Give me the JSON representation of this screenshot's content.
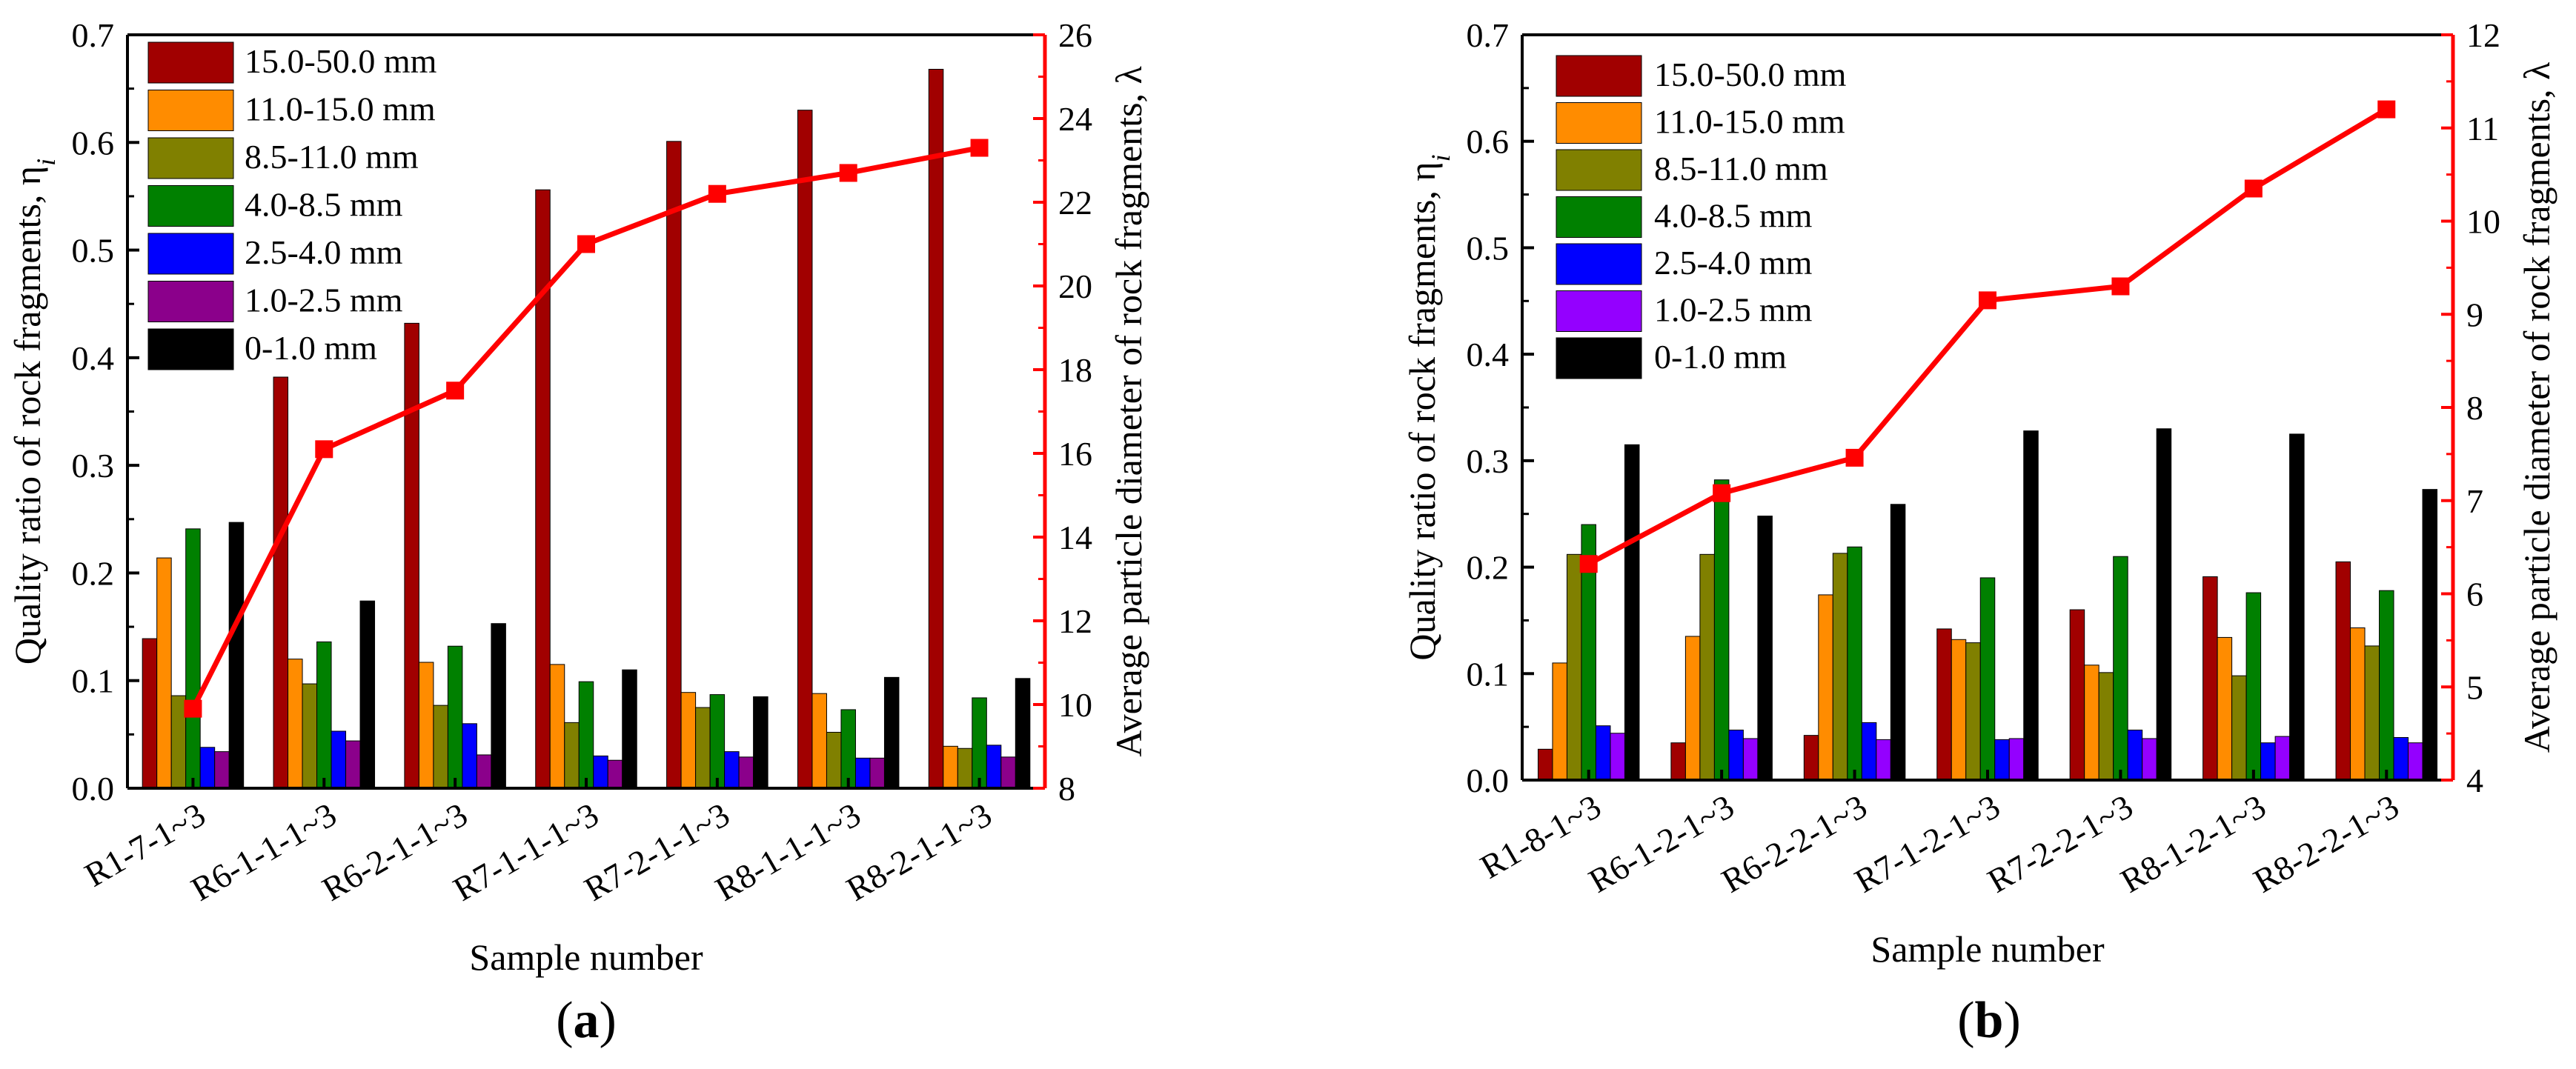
{
  "figure": {
    "panel_labels": [
      "(a)",
      "(b)"
    ]
  },
  "chart_data": [
    {
      "type": "bar",
      "panel": "(a)",
      "xlabel": "Sample number",
      "ylabel": "Quality ratio of rock fragments, η",
      "ylabel_subscript": "i",
      "y2label": "Average particle diameter of rock fragments, λ",
      "ylim": [
        0,
        0.7
      ],
      "yticks": [
        "0.0",
        "0.1",
        "0.2",
        "0.3",
        "0.4",
        "0.5",
        "0.6",
        "0.7"
      ],
      "y2lim": [
        8,
        26
      ],
      "y2ticks": [
        "8",
        "10",
        "12",
        "14",
        "16",
        "18",
        "20",
        "22",
        "24",
        "26"
      ],
      "legend_position": "top-left",
      "grid": false,
      "categories": [
        "R1-7-1~3",
        "R6-1-1-1~3",
        "R6-2-1-1~3",
        "R7-1-1-1~3",
        "R7-2-1-1~3",
        "R8-1-1-1~3",
        "R8-2-1-1~3"
      ],
      "series": [
        {
          "name": "15.0-50.0 mm",
          "color": "#a10000",
          "values": [
            0.139,
            0.382,
            0.432,
            0.556,
            0.601,
            0.63,
            0.668
          ]
        },
        {
          "name": "11.0-15.0 mm",
          "color": "#ff8c00",
          "values": [
            0.214,
            0.12,
            0.117,
            0.115,
            0.089,
            0.088,
            0.039
          ]
        },
        {
          "name": "8.5-11.0 mm",
          "color": "#808000",
          "values": [
            0.086,
            0.097,
            0.077,
            0.061,
            0.075,
            0.052,
            0.037
          ]
        },
        {
          "name": "4.0-8.5 mm",
          "color": "#008000",
          "values": [
            0.241,
            0.136,
            0.132,
            0.099,
            0.087,
            0.073,
            0.084
          ]
        },
        {
          "name": "2.5-4.0 mm",
          "color": "#0000ff",
          "values": [
            0.038,
            0.053,
            0.06,
            0.03,
            0.034,
            0.028,
            0.04
          ]
        },
        {
          "name": "1.0-2.5 mm",
          "color": "#8b008b",
          "values": [
            0.034,
            0.044,
            0.031,
            0.026,
            0.029,
            0.028,
            0.029
          ]
        },
        {
          "name": "0-1.0 mm",
          "color": "#000000",
          "values": [
            0.247,
            0.174,
            0.153,
            0.11,
            0.085,
            0.103,
            0.102
          ]
        }
      ],
      "line_series": {
        "axis": "right",
        "color": "#ff0000",
        "values": [
          9.9,
          16.1,
          17.5,
          21.0,
          22.2,
          22.7,
          23.3
        ]
      }
    },
    {
      "type": "bar",
      "panel": "(b)",
      "xlabel": "Sample number",
      "ylabel": "Quality ratio of rock fragments, η",
      "ylabel_subscript": "i",
      "y2label": "Average particle diameter of rock fragments, λ",
      "ylim": [
        0,
        0.7
      ],
      "yticks": [
        "0.0",
        "0.1",
        "0.2",
        "0.3",
        "0.4",
        "0.5",
        "0.6",
        "0.7"
      ],
      "y2lim": [
        4,
        12
      ],
      "y2ticks": [
        "4",
        "5",
        "6",
        "7",
        "8",
        "9",
        "10",
        "11",
        "12"
      ],
      "legend_position": "top-left",
      "grid": false,
      "categories": [
        "R1-8-1~3",
        "R6-1-2-1~3",
        "R6-2-2-1~3",
        "R7-1-2-1~3",
        "R7-2-2-1~3",
        "R8-1-2-1~3",
        "R8-2-2-1~3"
      ],
      "series": [
        {
          "name": "15.0-50.0 mm",
          "color": "#a10000",
          "values": [
            0.029,
            0.035,
            0.042,
            0.142,
            0.16,
            0.191,
            0.205
          ]
        },
        {
          "name": "11.0-15.0 mm",
          "color": "#ff8c00",
          "values": [
            0.11,
            0.135,
            0.174,
            0.132,
            0.108,
            0.134,
            0.143
          ]
        },
        {
          "name": "8.5-11.0 mm",
          "color": "#808000",
          "values": [
            0.212,
            0.212,
            0.213,
            0.129,
            0.101,
            0.098,
            0.126
          ]
        },
        {
          "name": "4.0-8.5 mm",
          "color": "#008000",
          "values": [
            0.24,
            0.282,
            0.219,
            0.19,
            0.21,
            0.176,
            0.178
          ]
        },
        {
          "name": "2.5-4.0 mm",
          "color": "#0000ff",
          "values": [
            0.051,
            0.047,
            0.054,
            0.038,
            0.047,
            0.035,
            0.04
          ]
        },
        {
          "name": "1.0-2.5 mm",
          "color": "#9400ff",
          "values": [
            0.044,
            0.039,
            0.038,
            0.039,
            0.039,
            0.041,
            0.035
          ]
        },
        {
          "name": "0-1.0 mm",
          "color": "#000000",
          "values": [
            0.315,
            0.248,
            0.259,
            0.328,
            0.33,
            0.325,
            0.273
          ]
        }
      ],
      "line_series": {
        "axis": "right",
        "color": "#ff0000",
        "values": [
          6.32,
          7.08,
          7.46,
          9.15,
          9.3,
          10.35,
          11.2
        ]
      }
    }
  ]
}
